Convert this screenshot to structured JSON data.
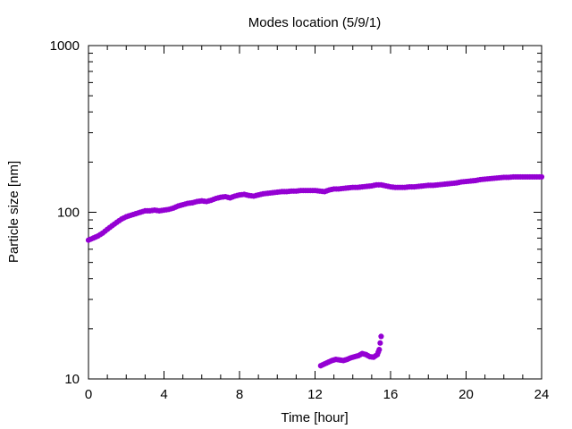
{
  "chart_data": {
    "type": "scatter",
    "title": "Modes location (5/9/1)",
    "xlabel": "Time [hour]",
    "ylabel": "Particle size [nm]",
    "xlim": [
      0,
      24
    ],
    "ylim": [
      10,
      1000
    ],
    "yscale": "log",
    "grid": false,
    "x_ticks": [
      {
        "value": 0,
        "label": "0"
      },
      {
        "value": 4,
        "label": "4"
      },
      {
        "value": 8,
        "label": "8"
      },
      {
        "value": 12,
        "label": "12"
      },
      {
        "value": 16,
        "label": "16"
      },
      {
        "value": 20,
        "label": "20"
      },
      {
        "value": 24,
        "label": "24"
      }
    ],
    "y_ticks": [
      {
        "value": 10,
        "label": "10"
      },
      {
        "value": 100,
        "label": "100"
      },
      {
        "value": 1000,
        "label": "1000"
      }
    ],
    "marker_color": "#9400d3",
    "series": [
      {
        "x": [
          0,
          0.25,
          0.5,
          0.75,
          1.0,
          1.25,
          1.5,
          1.75,
          2.0,
          2.25,
          2.5,
          2.75,
          3.0,
          3.25,
          3.5,
          3.75,
          4.0,
          4.25,
          4.5,
          4.75,
          5.0,
          5.25,
          5.5,
          5.75,
          6.0,
          6.25,
          6.5,
          6.75,
          7.0,
          7.25,
          7.5,
          7.75,
          8.0,
          8.25,
          8.5,
          8.75,
          9.0,
          9.25,
          9.5,
          9.75,
          10.0,
          10.25,
          10.5,
          10.75,
          11.0,
          11.25,
          11.5,
          11.75,
          12.0,
          12.25,
          12.5,
          12.75,
          13.0,
          13.25,
          13.5,
          13.75,
          14.0,
          14.25,
          14.5,
          14.75,
          15.0,
          15.25,
          15.5,
          15.75,
          16.0,
          16.25,
          16.5,
          16.75,
          17.0,
          17.25,
          17.5,
          17.75,
          18.0,
          18.25,
          18.5,
          18.75,
          19.0,
          19.25,
          19.5,
          19.75,
          20.0,
          20.25,
          20.5,
          20.75,
          21.0,
          21.25,
          21.5,
          21.75,
          22.0,
          22.25,
          22.5,
          22.75,
          23.0,
          23.25,
          23.5,
          23.75,
          24.0
        ],
        "y": [
          68,
          70,
          72,
          75,
          79,
          83,
          87,
          91,
          94,
          96,
          98,
          100,
          102,
          102,
          103,
          102,
          103,
          104,
          106,
          109,
          111,
          113,
          114,
          116,
          117,
          116,
          118,
          121,
          123,
          124,
          122,
          125,
          127,
          128,
          126,
          125,
          127,
          129,
          130,
          131,
          132,
          133,
          133,
          134,
          134,
          135,
          135,
          135,
          135,
          134,
          133,
          136,
          138,
          138,
          139,
          140,
          141,
          141,
          142,
          143,
          144,
          146,
          146,
          144,
          142,
          141,
          141,
          141,
          142,
          142,
          143,
          144,
          145,
          145,
          146,
          147,
          148,
          149,
          150,
          152,
          153,
          154,
          155,
          157,
          158,
          159,
          160,
          161,
          162,
          162,
          163,
          163,
          163,
          163,
          163,
          163,
          163
        ]
      },
      {
        "x": [
          12.3,
          12.5,
          12.7,
          12.9,
          13.1,
          13.3,
          13.5,
          13.7,
          13.9,
          14.1,
          14.3,
          14.5,
          14.7,
          14.9,
          15.1,
          15.3,
          15.4,
          15.5
        ],
        "y": [
          12.0,
          12.3,
          12.6,
          12.9,
          13.1,
          13.0,
          12.9,
          13.1,
          13.4,
          13.6,
          13.8,
          14.2,
          14.0,
          13.6,
          13.5,
          14.0,
          15.0,
          18.0
        ]
      }
    ]
  }
}
